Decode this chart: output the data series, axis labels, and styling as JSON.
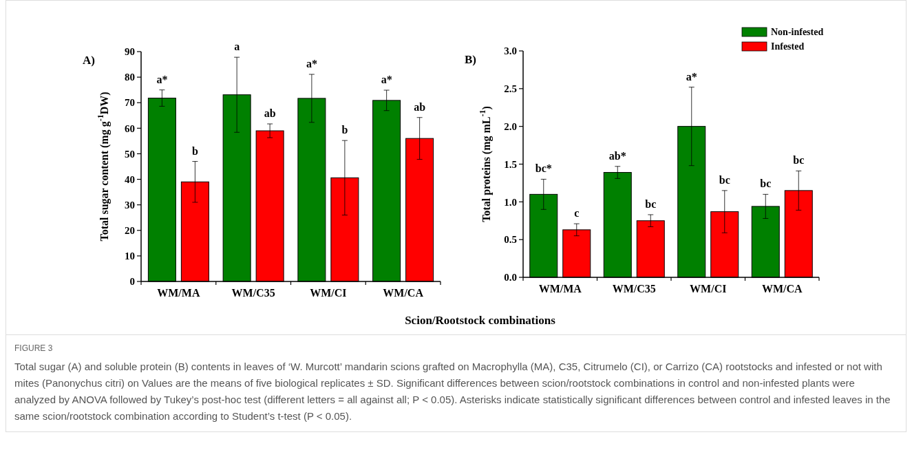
{
  "chart_data": [
    {
      "type": "bar",
      "title": "A)",
      "ylabel": "Total sugar content (mg g$^{-1}$DW)",
      "xlabel": "Scion/Rootstock combinations",
      "categories": [
        "WM/MA",
        "WM/C35",
        "WM/CI",
        "WM/CA"
      ],
      "series": [
        {
          "color": "#008000",
          "values": [
            71.8,
            73.1,
            71.7,
            70.9
          ],
          "errors": [
            3.2,
            14.7,
            9.4,
            4.0
          ]
        },
        {
          "color": "#ff0000",
          "values": [
            39.0,
            59.0,
            40.6,
            56.0
          ],
          "errors": [
            8.0,
            2.7,
            14.6,
            8.2
          ]
        }
      ],
      "ylim": [
        0,
        90
      ],
      "yticks": [
        0,
        10,
        20,
        30,
        40,
        50,
        60,
        70,
        80,
        90
      ],
      "legend": false,
      "annotations": [
        "a*",
        "a",
        "a*",
        "a*",
        "b",
        "ab",
        "b",
        "ab"
      ]
    },
    {
      "type": "bar",
      "title": "B)",
      "ylabel": "Total proteins (mg mL$^{-1}$)",
      "categories": [
        "WM/MA",
        "WM/C35",
        "WM/CI",
        "WM/CA"
      ],
      "series": [
        {
          "name": "Non-infested",
          "color": "#008000",
          "values": [
            1.1,
            1.39,
            2.0,
            0.94
          ],
          "errors": [
            0.2,
            0.08,
            0.52,
            0.16
          ]
        },
        {
          "name": "Infested",
          "color": "#ff0000",
          "values": [
            0.63,
            0.75,
            0.87,
            1.15
          ],
          "errors": [
            0.08,
            0.08,
            0.28,
            0.26
          ]
        }
      ],
      "ylim": [
        0,
        3
      ],
      "yticks": [
        {
          "value": 0,
          "label": "0.0"
        },
        0.5,
        {
          "value": 1,
          "label": "1.0"
        },
        1.5,
        {
          "value": 2,
          "label": "2.0"
        },
        2.5,
        {
          "value": 3,
          "label": "3.0"
        }
      ],
      "legend": "top right",
      "annotations": [
        "bc*",
        "ab*",
        "a*",
        "bc",
        "c",
        "bc",
        "bc",
        "bc",
        "FIGURE 3",
        "Total sugar (A) and soluble protein (B) contents in leaves of ‘W. Murcott’ mandarin scions grafted on Macrophylla (MA), C35, Citrumelo (CI), or Carrizo (CA) rootstocks and infested or not with mites (Panonychus citri) on Values are the means of five biological replicates ± SD. Significant differences between scion/rootstock combinations in control and non-infested plants were analyzed by ANOVA followed by Tukey’s post-hoc test (different letters = all against all; P < 0.05). Asterisks indicate statistically significant differences between control and infested leaves in the same scion/rootstock combination according to Student’s t-test (P < 0.05)."
      ]
    }
  ]
}
